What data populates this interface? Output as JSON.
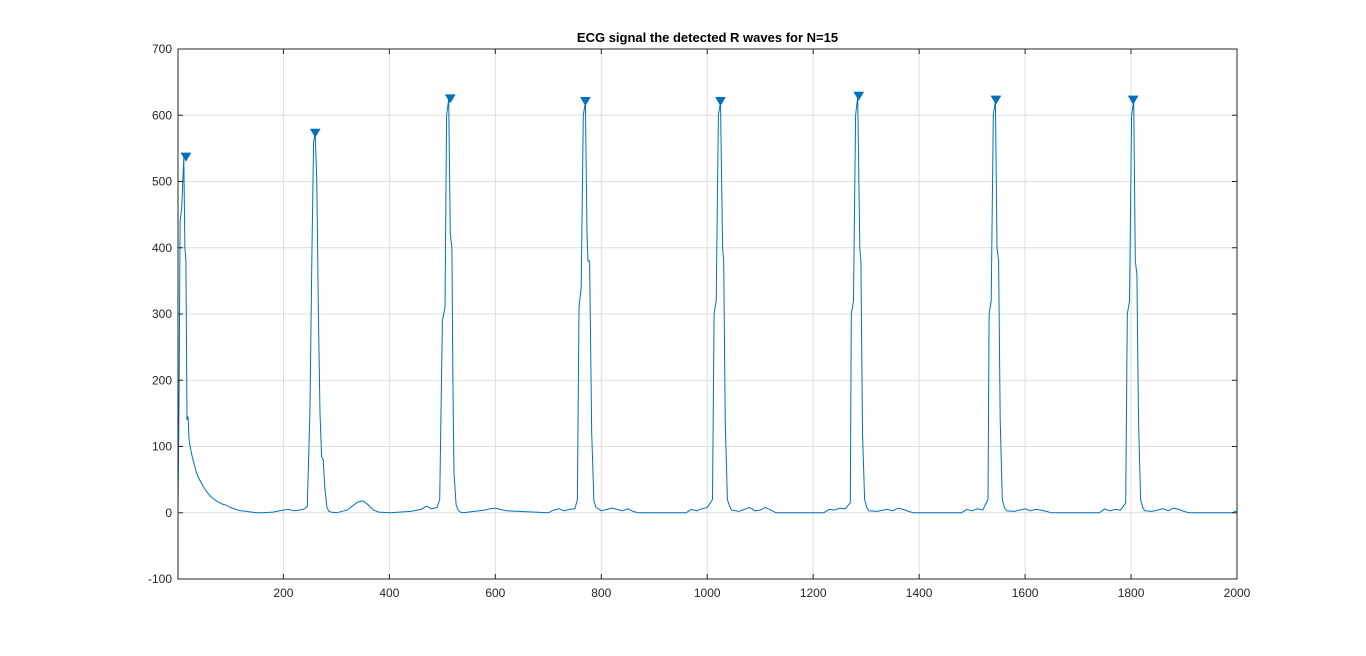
{
  "chart_data": {
    "type": "line",
    "title": "ECG signal the detected R waves for N=15",
    "xlabel": "",
    "ylabel": "",
    "xlim": [
      1,
      2000
    ],
    "ylim": [
      -100,
      700
    ],
    "grid": true,
    "x_ticks": [
      200,
      400,
      600,
      800,
      1000,
      1200,
      1400,
      1600,
      1800,
      2000
    ],
    "y_ticks": [
      -100,
      0,
      100,
      200,
      300,
      400,
      500,
      600,
      700
    ],
    "x_tick_labels": [
      "200",
      "400",
      "600",
      "800",
      "1000",
      "1200",
      "1400",
      "1600",
      "1800",
      "2000"
    ],
    "y_tick_labels": [
      "-100",
      "0",
      "100",
      "200",
      "300",
      "400",
      "500",
      "600",
      "700"
    ],
    "colors": {
      "signal": "#0072bd",
      "markers": "#0072bd"
    },
    "series": [
      {
        "x": [
          1,
          3,
          5,
          8,
          10,
          12,
          14,
          16,
          18,
          20,
          22,
          24,
          26,
          28,
          30,
          32,
          34,
          36,
          38,
          40,
          45,
          50,
          55,
          60,
          65,
          70,
          75,
          80,
          85,
          90,
          95,
          100,
          110,
          120,
          130,
          140,
          150,
          160,
          180,
          200,
          210,
          220,
          230,
          240,
          245,
          250,
          254,
          257,
          260,
          263,
          266,
          269,
          272,
          275,
          278,
          282,
          286,
          290,
          300,
          320,
          340,
          350,
          360,
          370,
          380,
          400,
          440,
          460,
          470,
          480,
          490,
          495,
          500,
          505,
          508,
          512,
          515,
          518,
          520,
          522,
          526,
          530,
          534,
          540,
          560,
          580,
          590,
          600,
          610,
          620,
          700,
          710,
          720,
          730,
          740,
          750,
          755,
          758,
          762,
          766,
          770,
          773,
          775,
          778,
          782,
          786,
          790,
          800,
          820,
          830,
          840,
          850,
          860,
          870,
          960,
          970,
          980,
          990,
          1000,
          1010,
          1013,
          1017,
          1021,
          1025,
          1029,
          1031,
          1034,
          1038,
          1042,
          1046,
          1060,
          1080,
          1090,
          1100,
          1110,
          1120,
          1130,
          1220,
          1230,
          1240,
          1250,
          1260,
          1270,
          1272,
          1276,
          1280,
          1284,
          1288,
          1290,
          1293,
          1297,
          1301,
          1305,
          1320,
          1340,
          1350,
          1360,
          1370,
          1380,
          1390,
          1480,
          1490,
          1500,
          1510,
          1520,
          1530,
          1532,
          1536,
          1540,
          1544,
          1547,
          1550,
          1553,
          1557,
          1561,
          1565,
          1580,
          1600,
          1610,
          1620,
          1630,
          1640,
          1650,
          1740,
          1750,
          1760,
          1770,
          1780,
          1790,
          1793,
          1797,
          1801,
          1805,
          1808,
          1811,
          1814,
          1818,
          1822,
          1826,
          1840,
          1860,
          1870,
          1880,
          1890,
          1900,
          1910,
          1990,
          2000
        ],
        "values": [
          0,
          180,
          440,
          460,
          500,
          536,
          400,
          380,
          140,
          145,
          110,
          100,
          92,
          84,
          78,
          72,
          66,
          60,
          56,
          52,
          45,
          38,
          32,
          27,
          23,
          20,
          17,
          15,
          13,
          12,
          10,
          8,
          5,
          3,
          2,
          1,
          0,
          0,
          1,
          4,
          5,
          3,
          4,
          6,
          10,
          150,
          400,
          560,
          572,
          500,
          300,
          150,
          85,
          80,
          40,
          8,
          2,
          1,
          0,
          4,
          16,
          18,
          12,
          4,
          1,
          0,
          2,
          5,
          10,
          6,
          8,
          20,
          290,
          310,
          600,
          624,
          420,
          400,
          200,
          60,
          12,
          4,
          1,
          0,
          2,
          4,
          6,
          7,
          5,
          3,
          0,
          4,
          6,
          3,
          5,
          6,
          20,
          310,
          340,
          600,
          620,
          420,
          380,
          380,
          120,
          18,
          8,
          3,
          7,
          5,
          3,
          6,
          2,
          0,
          0,
          5,
          3,
          6,
          8,
          20,
          300,
          320,
          600,
          620,
          400,
          380,
          140,
          20,
          10,
          4,
          2,
          8,
          3,
          4,
          8,
          4,
          0,
          0,
          5,
          4,
          7,
          6,
          15,
          300,
          320,
          600,
          628,
          400,
          380,
          120,
          20,
          8,
          3,
          2,
          5,
          3,
          7,
          5,
          2,
          0,
          0,
          5,
          3,
          6,
          4,
          20,
          300,
          320,
          600,
          622,
          400,
          380,
          140,
          20,
          8,
          3,
          2,
          6,
          3,
          5,
          4,
          2,
          0,
          0,
          6,
          3,
          5,
          4,
          15,
          300,
          320,
          600,
          622,
          380,
          360,
          140,
          20,
          8,
          3,
          2,
          6,
          3,
          7,
          5,
          2,
          0,
          0,
          3
        ]
      }
    ],
    "markers": {
      "x": [
        16,
        260,
        515,
        770,
        1025,
        1286,
        1545,
        1804
      ],
      "y": [
        536,
        572,
        624,
        620,
        620,
        628,
        622,
        622
      ]
    }
  }
}
